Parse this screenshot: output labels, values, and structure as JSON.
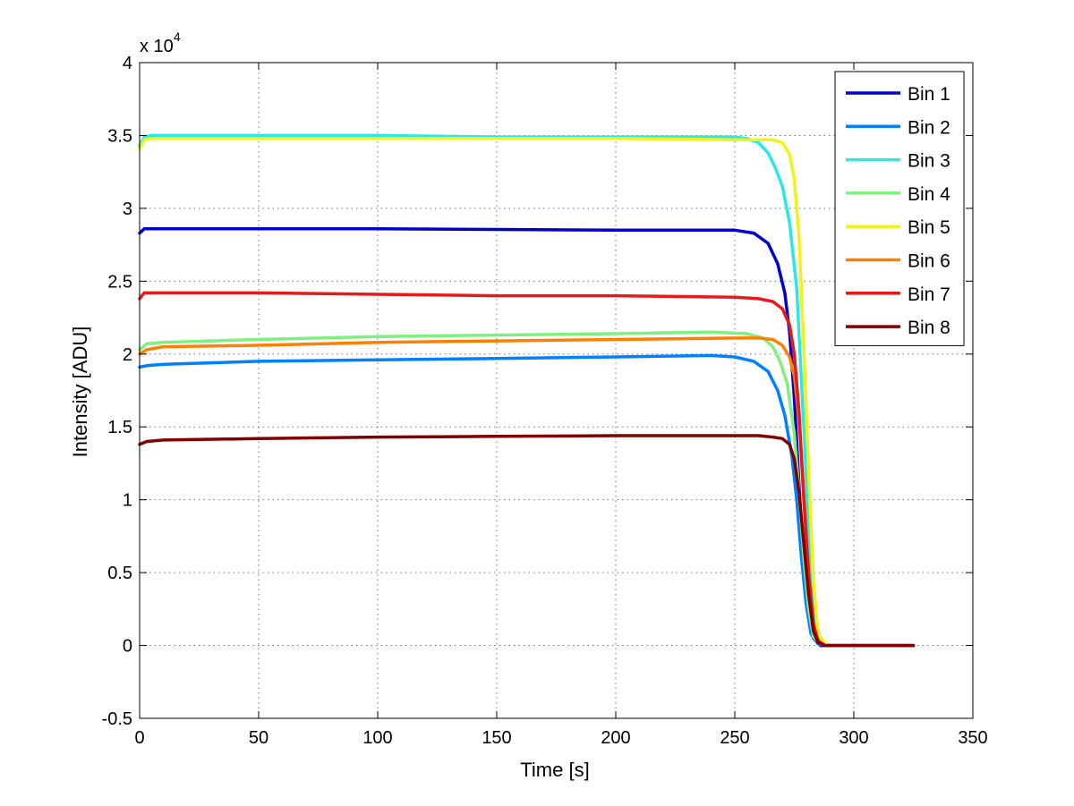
{
  "chart_data": {
    "type": "line",
    "title": "",
    "xlabel": "Time [s]",
    "ylabel": "Intensity [ADU]",
    "y_multiplier_label": "x 10",
    "y_multiplier_exponent": "4",
    "xlim": [
      0,
      350
    ],
    "ylim": [
      -0.5,
      4
    ],
    "y_scale": 10000,
    "xticks": [
      0,
      50,
      100,
      150,
      200,
      250,
      300,
      350
    ],
    "yticks": [
      -0.5,
      0,
      0.5,
      1,
      1.5,
      2,
      2.5,
      3,
      3.5,
      4
    ],
    "xtick_labels": [
      "0",
      "50",
      "100",
      "150",
      "200",
      "250",
      "300",
      "350"
    ],
    "ytick_labels": [
      "-0.5",
      "0",
      "0.5",
      "1",
      "1.5",
      "2",
      "2.5",
      "3",
      "3.5",
      "4"
    ],
    "grid": true,
    "legend_position": "top-right",
    "series": [
      {
        "name": "Bin 1",
        "color": "#0000cd",
        "x": [
          0,
          2,
          5,
          50,
          100,
          150,
          200,
          250,
          258,
          264,
          268,
          271,
          273,
          275,
          277,
          279,
          281,
          283,
          286,
          290,
          300,
          325
        ],
        "y": [
          2.83,
          2.86,
          2.86,
          2.86,
          2.86,
          2.855,
          2.85,
          2.85,
          2.83,
          2.76,
          2.62,
          2.42,
          2.15,
          1.7,
          1.1,
          0.55,
          0.2,
          0.05,
          0.0,
          0.0,
          0.0,
          0.0
        ]
      },
      {
        "name": "Bin 2",
        "color": "#0080ff",
        "x": [
          0,
          3,
          10,
          50,
          100,
          150,
          200,
          240,
          250,
          258,
          264,
          268,
          271,
          274,
          276,
          278,
          280,
          282,
          285,
          290,
          300,
          325
        ],
        "y": [
          1.91,
          1.92,
          1.93,
          1.95,
          1.96,
          1.97,
          1.98,
          1.99,
          1.98,
          1.95,
          1.88,
          1.75,
          1.58,
          1.3,
          1.0,
          0.6,
          0.28,
          0.08,
          0.01,
          0.0,
          0.0,
          0.0
        ]
      },
      {
        "name": "Bin 3",
        "color": "#2ee6e6",
        "x": [
          0,
          2,
          5,
          50,
          100,
          150,
          200,
          250,
          255,
          260,
          264,
          267,
          270,
          273,
          276,
          279,
          281,
          283,
          286,
          290,
          300,
          325
        ],
        "y": [
          3.43,
          3.49,
          3.5,
          3.5,
          3.5,
          3.49,
          3.49,
          3.49,
          3.48,
          3.45,
          3.38,
          3.28,
          3.15,
          2.9,
          2.45,
          1.5,
          0.8,
          0.25,
          0.03,
          0.0,
          0.0,
          0.0
        ]
      },
      {
        "name": "Bin 4",
        "color": "#7ff07f",
        "x": [
          0,
          3,
          10,
          50,
          100,
          150,
          200,
          240,
          255,
          262,
          266,
          269,
          272,
          275,
          277,
          279,
          281,
          283,
          286,
          290,
          300,
          325
        ],
        "y": [
          2.03,
          2.07,
          2.08,
          2.1,
          2.12,
          2.13,
          2.14,
          2.15,
          2.14,
          2.11,
          2.05,
          1.95,
          1.8,
          1.45,
          1.05,
          0.6,
          0.25,
          0.06,
          0.01,
          0.0,
          0.0,
          0.0
        ]
      },
      {
        "name": "Bin 5",
        "color": "#f2f21a",
        "x": [
          0,
          2,
          5,
          50,
          100,
          150,
          200,
          250,
          260,
          266,
          270,
          273,
          275,
          277,
          279,
          281,
          283,
          285,
          288,
          292,
          300,
          325
        ],
        "y": [
          3.41,
          3.47,
          3.48,
          3.48,
          3.48,
          3.48,
          3.48,
          3.47,
          3.47,
          3.47,
          3.45,
          3.37,
          3.2,
          2.8,
          2.05,
          1.2,
          0.45,
          0.08,
          0.01,
          0.0,
          0.0,
          0.0
        ]
      },
      {
        "name": "Bin 6",
        "color": "#ff8000",
        "x": [
          0,
          3,
          10,
          50,
          100,
          150,
          200,
          250,
          260,
          266,
          270,
          273,
          275,
          277,
          279,
          281,
          283,
          285,
          288,
          292,
          300,
          325
        ],
        "y": [
          2.0,
          2.03,
          2.05,
          2.06,
          2.08,
          2.09,
          2.1,
          2.11,
          2.11,
          2.1,
          2.06,
          1.98,
          1.85,
          1.55,
          1.05,
          0.5,
          0.15,
          0.03,
          0.0,
          0.0,
          0.0,
          0.0
        ]
      },
      {
        "name": "Bin 7",
        "color": "#e61a1a",
        "x": [
          0,
          2,
          5,
          50,
          100,
          150,
          200,
          250,
          260,
          266,
          270,
          273,
          275,
          277,
          279,
          281,
          283,
          285,
          288,
          292,
          300,
          325
        ],
        "y": [
          2.38,
          2.42,
          2.42,
          2.42,
          2.41,
          2.4,
          2.4,
          2.39,
          2.38,
          2.36,
          2.31,
          2.2,
          2.0,
          1.6,
          1.0,
          0.5,
          0.15,
          0.03,
          0.0,
          0.0,
          0.0,
          0.0
        ]
      },
      {
        "name": "Bin 8",
        "color": "#800000",
        "x": [
          0,
          3,
          10,
          50,
          100,
          150,
          200,
          240,
          260,
          266,
          270,
          273,
          275,
          277,
          279,
          281,
          283,
          285,
          288,
          292,
          300,
          325
        ],
        "y": [
          1.38,
          1.4,
          1.41,
          1.42,
          1.43,
          1.435,
          1.44,
          1.44,
          1.44,
          1.43,
          1.42,
          1.38,
          1.28,
          1.05,
          0.7,
          0.35,
          0.1,
          0.02,
          0.0,
          0.0,
          0.0,
          0.0
        ]
      }
    ]
  }
}
